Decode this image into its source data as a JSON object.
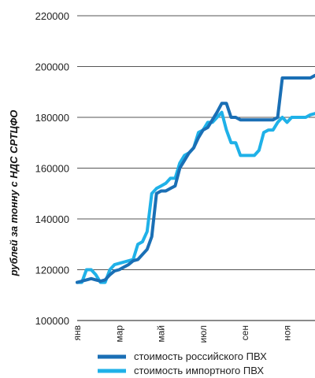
{
  "chart_data": {
    "type": "line",
    "ylabel": "рублей за тонну с НДС СРТЦФО",
    "xlabel": "",
    "ylim": [
      100000,
      220000
    ],
    "yticks": [
      100000,
      120000,
      140000,
      160000,
      180000,
      200000,
      220000
    ],
    "ytick_labels": [
      "100000",
      "120000",
      "140000",
      "160000",
      "180000",
      "200000",
      "220000"
    ],
    "xticks": [
      {
        "label": "янв",
        "week": 1
      },
      {
        "label": "мар",
        "week": 10
      },
      {
        "label": "май",
        "week": 19
      },
      {
        "label": "июл",
        "week": 28
      },
      {
        "label": "сен",
        "week": 37
      },
      {
        "label": "ноя",
        "week": 46
      }
    ],
    "xlim": [
      1,
      52
    ],
    "grid": "horizontal",
    "legend_position": "bottom",
    "series": [
      {
        "name": "стоимость российского ПВХ",
        "color": "#1a6fb5",
        "x": [
          1,
          2,
          3,
          4,
          5,
          6,
          7,
          8,
          9,
          10,
          11,
          12,
          13,
          14,
          15,
          16,
          17,
          18,
          19,
          20,
          21,
          22,
          23,
          24,
          25,
          26,
          27,
          28,
          29,
          30,
          31,
          32,
          33,
          34,
          35,
          36,
          37,
          38,
          39,
          40,
          41,
          42,
          43,
          44,
          45,
          46,
          47,
          48,
          49,
          50,
          51,
          52
        ],
        "values": [
          115000,
          115500,
          116000,
          116500,
          116000,
          115500,
          116000,
          118000,
          119500,
          120000,
          121000,
          122000,
          123500,
          124000,
          126000,
          128000,
          133000,
          150000,
          151000,
          151000,
          152000,
          153000,
          160000,
          163000,
          166000,
          168000,
          172000,
          175000,
          176000,
          179000,
          182000,
          185500,
          185500,
          180000,
          180000,
          179000,
          179000,
          179000,
          179000,
          179000,
          179000,
          179000,
          179000,
          180000,
          195500,
          195500,
          195500,
          195500,
          195500,
          195500,
          195500,
          196500
        ]
      },
      {
        "name": "стоимость импортного ПВХ",
        "color": "#1fb1e8",
        "x": [
          1,
          2,
          3,
          4,
          5,
          6,
          7,
          8,
          9,
          10,
          11,
          12,
          13,
          14,
          15,
          16,
          17,
          18,
          19,
          20,
          21,
          22,
          23,
          24,
          25,
          26,
          27,
          28,
          29,
          30,
          31,
          32,
          33,
          34,
          35,
          36,
          37,
          38,
          39,
          40,
          41,
          42,
          43,
          44,
          45,
          46,
          47,
          48,
          49,
          50,
          51,
          52
        ],
        "values": [
          115000,
          115000,
          120000,
          120000,
          118000,
          115000,
          115000,
          120000,
          122000,
          122500,
          123000,
          123500,
          124000,
          130000,
          131000,
          135000,
          150000,
          152000,
          153000,
          154000,
          156000,
          156000,
          162000,
          165000,
          166000,
          168000,
          174000,
          175000,
          178000,
          178000,
          180000,
          182000,
          175000,
          170000,
          170000,
          165000,
          165000,
          165000,
          165000,
          167000,
          174000,
          175000,
          175000,
          178000,
          180000,
          178000,
          180000,
          180000,
          180000,
          180000,
          181000,
          181500
        ]
      }
    ]
  }
}
